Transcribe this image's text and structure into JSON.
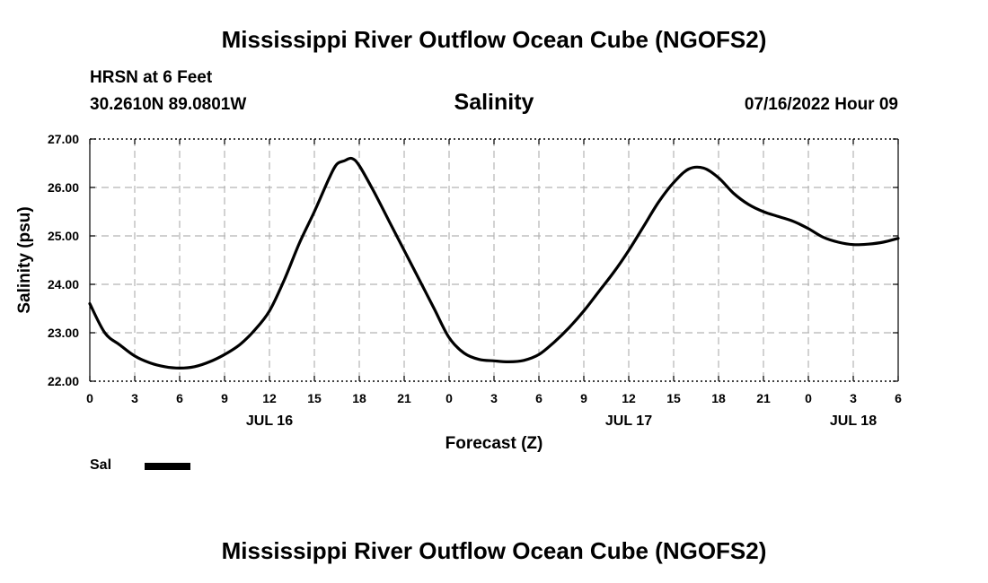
{
  "header": {
    "title": "Mississippi River Outflow Ocean Cube (NGOFS2)",
    "station": "HRSN at 6 Feet",
    "coordinates": "30.2610N  89.0801W",
    "variable_title": "Salinity",
    "datetime": "07/16/2022 Hour 09"
  },
  "footer": {
    "title": "Mississippi River Outflow Ocean Cube (NGOFS2)"
  },
  "legend": {
    "label": "Sal",
    "color": "#000000"
  },
  "chart_data": {
    "type": "line",
    "title": "Salinity",
    "xlabel": "Forecast (Z)",
    "ylabel": "Salinity (psu)",
    "xlim": [
      0,
      54
    ],
    "ylim": [
      22.0,
      27.0
    ],
    "grid": true,
    "x_ticks": [
      0,
      3,
      6,
      9,
      12,
      15,
      18,
      21,
      24,
      27,
      30,
      33,
      36,
      39,
      42,
      45,
      48,
      51,
      54
    ],
    "x_tick_labels": [
      "0",
      "3",
      "6",
      "9",
      "12",
      "15",
      "18",
      "21",
      "0",
      "3",
      "6",
      "9",
      "12",
      "15",
      "18",
      "21",
      "0",
      "3",
      "6"
    ],
    "y_ticks": [
      22,
      23,
      24,
      25,
      26,
      27
    ],
    "y_tick_labels": [
      "22.00",
      "23.00",
      "24.00",
      "25.00",
      "26.00",
      "27.00"
    ],
    "date_labels": [
      {
        "x": 12,
        "label": "JUL 16"
      },
      {
        "x": 36,
        "label": "JUL 17"
      },
      {
        "x": 51,
        "label": "JUL 18"
      }
    ],
    "series": [
      {
        "name": "Sal",
        "x": [
          0,
          1,
          2,
          3,
          4,
          5,
          6,
          7,
          8,
          9,
          10,
          11,
          12,
          13,
          14,
          15,
          16,
          16.5,
          17,
          17.5,
          18,
          19,
          20,
          21,
          22,
          23,
          24,
          25,
          26,
          27,
          28,
          29,
          30,
          31,
          32,
          33,
          34,
          35,
          36,
          37,
          38,
          39,
          40,
          41,
          42,
          43,
          44,
          45,
          46,
          47,
          48,
          49,
          50,
          51,
          52,
          53,
          54
        ],
        "values": [
          23.6,
          23.0,
          22.75,
          22.52,
          22.38,
          22.3,
          22.27,
          22.3,
          22.4,
          22.55,
          22.75,
          23.05,
          23.45,
          24.1,
          24.85,
          25.5,
          26.2,
          26.48,
          26.55,
          26.6,
          26.45,
          25.9,
          25.3,
          24.7,
          24.1,
          23.5,
          22.9,
          22.58,
          22.45,
          22.42,
          22.4,
          22.43,
          22.55,
          22.8,
          23.1,
          23.45,
          23.85,
          24.25,
          24.7,
          25.2,
          25.7,
          26.1,
          26.38,
          26.4,
          26.2,
          25.88,
          25.65,
          25.5,
          25.4,
          25.3,
          25.15,
          24.97,
          24.87,
          24.82,
          24.83,
          24.87,
          24.95
        ]
      }
    ]
  }
}
